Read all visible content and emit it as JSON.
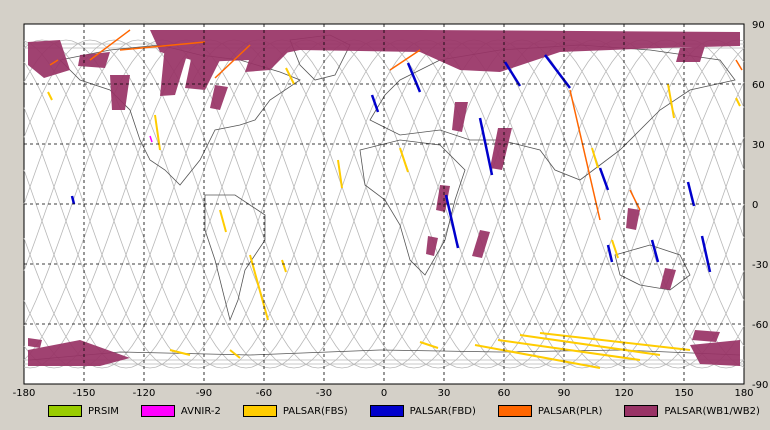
{
  "map": {
    "x_ticks": [
      "-180",
      "-150",
      "-120",
      "-90",
      "-60",
      "-30",
      "0",
      "30",
      "60",
      "90",
      "120",
      "150",
      "180"
    ],
    "y_ticks": [
      "90",
      "60",
      "30",
      "0",
      "-30",
      "-60",
      "-90"
    ],
    "legend": [
      {
        "label": "PRSIM",
        "color": "#99cc00"
      },
      {
        "label": "AVNIR-2",
        "color": "#ff00ff"
      },
      {
        "label": "PALSAR(FBS)",
        "color": "#ffcc00"
      },
      {
        "label": "PALSAR(FBD)",
        "color": "#0000cc"
      },
      {
        "label": "PALSAR(PLR)",
        "color": "#ff6600"
      },
      {
        "label": "PALSAR(WB1/WB2)",
        "color": "#993366"
      }
    ]
  }
}
